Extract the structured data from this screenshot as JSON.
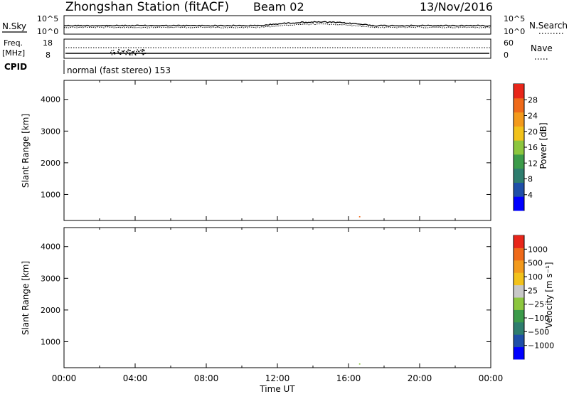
{
  "header": {
    "station": "Zhongshan Station (fitACF)",
    "beam": "Beam 02",
    "date": "13/Nov/2016"
  },
  "noise_panel": {
    "left_label": "N.Sky",
    "right_label": "N.Search",
    "left_ticks": [
      "10^5",
      "10^0"
    ],
    "right_ticks": [
      "10^5",
      "10^0"
    ]
  },
  "freq_panel": {
    "left_label_1": "Freq.",
    "left_label_2": "[MHz]",
    "right_label": "Nave",
    "left_ticks": [
      "18",
      "8"
    ],
    "right_ticks": [
      "60",
      "0"
    ]
  },
  "cpid": {
    "label": "CPID",
    "value": "normal (fast stereo) 153"
  },
  "colors": {
    "power_scale": [
      "#0000ff",
      "#1f4fa8",
      "#2e7d6e",
      "#3c9b4a",
      "#8cc63e",
      "#f2c21b",
      "#f39a1c",
      "#ef6a1a",
      "#e8261a"
    ],
    "velocity_scale": [
      "#0000ff",
      "#1f4fa8",
      "#2e7d6e",
      "#3c9b4a",
      "#8cc63e",
      "#c8c8c8",
      "#f2c21b",
      "#f39a1c",
      "#ef6a1a",
      "#e8261a"
    ]
  },
  "chart_data": [
    {
      "type": "heatmap",
      "panel": "power",
      "ylabel": "Slant Range [km]",
      "xlabel": "Time UT",
      "ylim": [
        180,
        4600
      ],
      "xlim": [
        "00:00",
        "24:00"
      ],
      "y_ticks": [
        "4000",
        "3000",
        "2000",
        "1000"
      ],
      "x_ticks": [
        "00:00",
        "04:00",
        "08:00",
        "12:00",
        "16:00",
        "20:00",
        "00:00"
      ],
      "colorbar_label": "Power [dB]",
      "colorbar_ticks": [
        "28",
        "24",
        "20",
        "16",
        "12",
        "8",
        "4"
      ]
    },
    {
      "type": "heatmap",
      "panel": "velocity",
      "ylabel": "Slant Range [km]",
      "xlabel": "Time UT",
      "ylim": [
        180,
        4600
      ],
      "xlim": [
        "00:00",
        "24:00"
      ],
      "y_ticks": [
        "4000",
        "3000",
        "2000",
        "1000"
      ],
      "x_ticks": [
        "00:00",
        "04:00",
        "08:00",
        "12:00",
        "16:00",
        "20:00",
        "00:00"
      ],
      "colorbar_label": "Velocity [m s⁻¹]",
      "colorbar_ticks": [
        "1000",
        "500",
        "100",
        "25",
        "−25",
        "−100",
        "−500",
        "−1000"
      ]
    }
  ]
}
